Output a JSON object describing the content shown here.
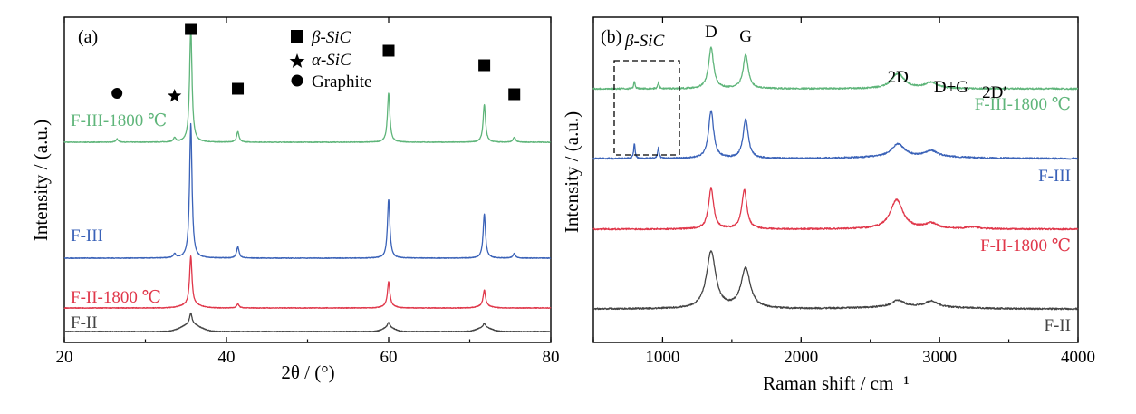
{
  "colors": {
    "F-II": "#444444",
    "F-II-1800": "#e0374a",
    "F-III": "#3a62b8",
    "F-III-1800": "#5fb57a",
    "text": "#000000"
  },
  "chart_data": [
    {
      "type": "line",
      "panel_label": "(a)",
      "xlabel": "2θ / (°)",
      "ylabel": "Intensity / (a.u.)",
      "xlim": [
        20,
        80
      ],
      "xticks": [
        "20",
        "40",
        "60",
        "80"
      ],
      "legend": [
        {
          "marker": "square-icon",
          "label": "β-SiC"
        },
        {
          "marker": "star-icon",
          "label": "α-SiC"
        },
        {
          "marker": "circle-icon",
          "label": "Graphite"
        }
      ],
      "markers": [
        {
          "type": "circle",
          "x": 26.5
        },
        {
          "type": "star",
          "x": 33.6
        },
        {
          "type": "square",
          "x": 35.6
        },
        {
          "type": "square",
          "x": 41.4
        },
        {
          "type": "square",
          "x": 60.0
        },
        {
          "type": "square",
          "x": 71.8
        },
        {
          "type": "square",
          "x": 75.5
        }
      ],
      "series": [
        {
          "name": "F-III-1800 ℃",
          "peaks": [
            {
              "x": 26.5,
              "h": 0.4
            },
            {
              "x": 33.6,
              "h": 0.5
            },
            {
              "x": 35.6,
              "h": 14.0
            },
            {
              "x": 41.4,
              "h": 1.3
            },
            {
              "x": 60.0,
              "h": 6.0
            },
            {
              "x": 71.8,
              "h": 4.6
            },
            {
              "x": 75.5,
              "h": 0.6
            }
          ]
        },
        {
          "name": "F-III",
          "peaks": [
            {
              "x": 33.6,
              "h": 0.5
            },
            {
              "x": 35.6,
              "h": 16.5
            },
            {
              "x": 41.4,
              "h": 1.4
            },
            {
              "x": 60.0,
              "h": 7.2
            },
            {
              "x": 71.8,
              "h": 5.4
            },
            {
              "x": 75.5,
              "h": 0.6
            }
          ]
        },
        {
          "name": "F-II-1800 ℃",
          "peaks": [
            {
              "x": 35.6,
              "h": 6.0
            },
            {
              "x": 41.4,
              "h": 0.5
            },
            {
              "x": 60.0,
              "h": 3.0
            },
            {
              "x": 71.8,
              "h": 2.0
            }
          ]
        },
        {
          "name": "F-II",
          "peaks": [
            {
              "x": 35.6,
              "h": 1.4
            },
            {
              "x": 60.0,
              "h": 0.6
            },
            {
              "x": 71.8,
              "h": 0.5
            }
          ]
        }
      ]
    },
    {
      "type": "line",
      "panel_label": "(b)",
      "xlabel": "Raman shift / cm⁻¹",
      "ylabel": "Intensity / (a.u.)",
      "xlim": [
        500,
        4000
      ],
      "xticks": [
        "1000",
        "2000",
        "3000",
        "4000"
      ],
      "box_label": "β-SiC",
      "peak_labels": [
        {
          "label": "D",
          "x": 1350
        },
        {
          "label": "G",
          "x": 1600
        },
        {
          "label": "2D",
          "x": 2700
        },
        {
          "label": "D+G",
          "x": 2940
        },
        {
          "label": "2D′",
          "x": 3240
        }
      ],
      "series": [
        {
          "name": "F-III-1800 ℃",
          "peaks": [
            {
              "x": 796,
              "h": 1.0
            },
            {
              "x": 970,
              "h": 0.9
            },
            {
              "x": 1350,
              "h": 6.0
            },
            {
              "x": 1600,
              "h": 5.0
            },
            {
              "x": 2700,
              "h": 2.2
            },
            {
              "x": 2940,
              "h": 0.9
            }
          ]
        },
        {
          "name": "F-III",
          "peaks": [
            {
              "x": 796,
              "h": 2.2
            },
            {
              "x": 970,
              "h": 1.7
            },
            {
              "x": 1350,
              "h": 7.0
            },
            {
              "x": 1600,
              "h": 5.8
            },
            {
              "x": 2700,
              "h": 1.9
            },
            {
              "x": 2940,
              "h": 0.9
            }
          ]
        },
        {
          "name": "F-II-1800 ℃",
          "peaks": [
            {
              "x": 1350,
              "h": 6.0
            },
            {
              "x": 1590,
              "h": 5.8
            },
            {
              "x": 2690,
              "h": 4.3
            },
            {
              "x": 2940,
              "h": 0.8
            },
            {
              "x": 3240,
              "h": 0.3
            }
          ]
        },
        {
          "name": "F-II",
          "peaks": [
            {
              "x": 1350,
              "h": 8.4
            },
            {
              "x": 1600,
              "h": 5.9
            },
            {
              "x": 2700,
              "h": 1.0
            },
            {
              "x": 2940,
              "h": 0.9
            }
          ]
        }
      ]
    }
  ]
}
